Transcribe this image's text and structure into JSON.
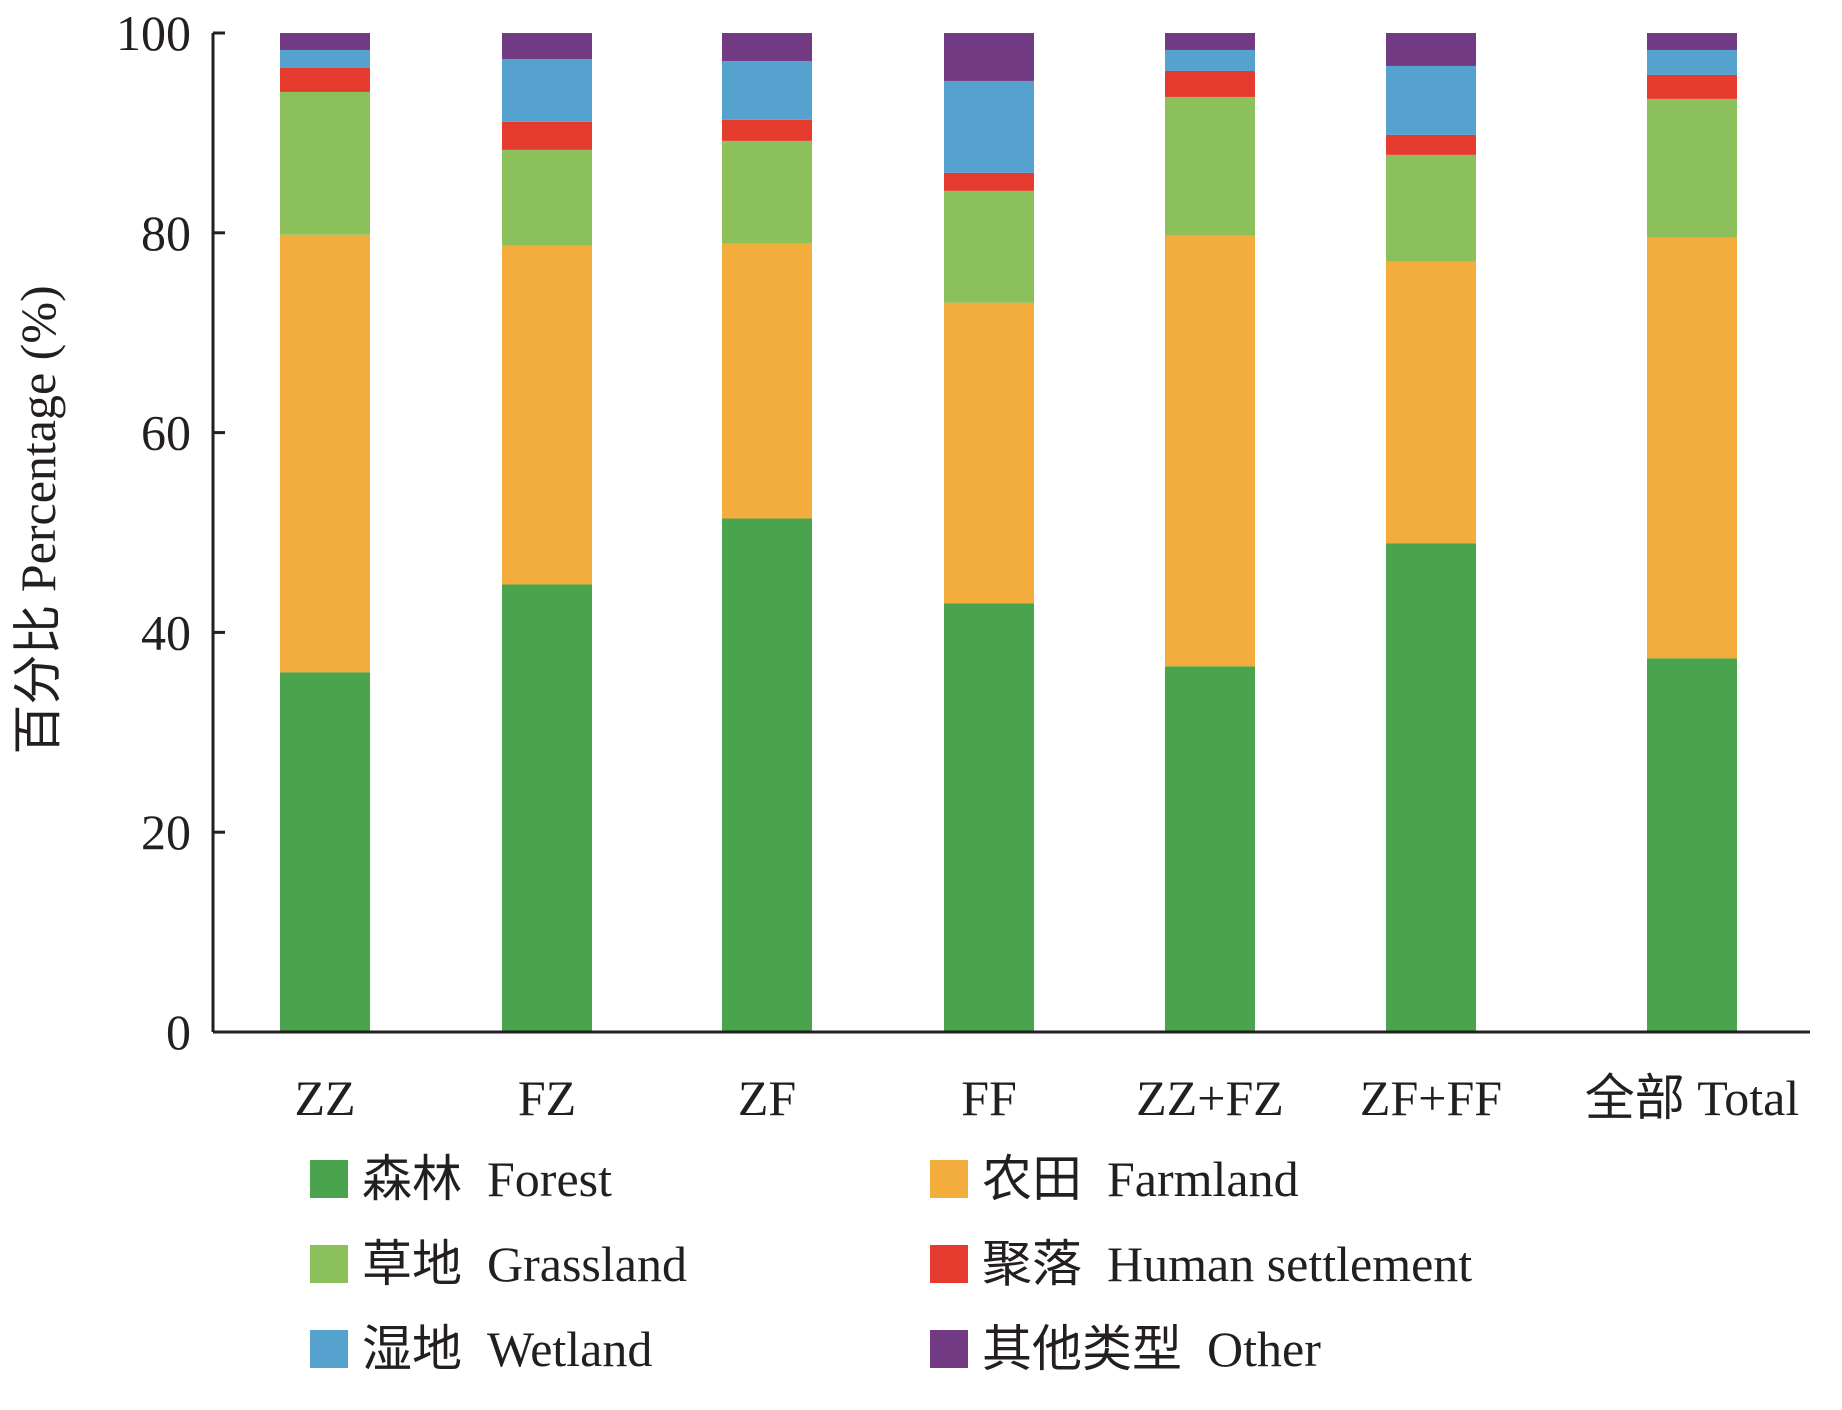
{
  "chart_data": {
    "type": "bar",
    "stacked": true,
    "title": "",
    "xlabel": "",
    "ylabel": "百分比  Percentage (%)",
    "ylim": [
      0,
      100
    ],
    "yticks": [
      0,
      20,
      40,
      60,
      80,
      100
    ],
    "grid": false,
    "legend_position": "bottom",
    "categories": [
      "ZZ",
      "FZ",
      "ZF",
      "FF",
      "ZZ+FZ",
      "ZF+FF",
      "全部 Total"
    ],
    "series": [
      {
        "name": "森林  Forest",
        "color": "#4aa34d",
        "values": [
          36.0,
          44.8,
          51.4,
          42.9,
          36.6,
          48.9,
          37.4
        ]
      },
      {
        "name": "农田  Farmland",
        "color": "#f2ad3d",
        "values": [
          43.8,
          33.9,
          27.5,
          30.1,
          43.1,
          28.2,
          42.1
        ]
      },
      {
        "name": "草地  Grassland",
        "color": "#8cc05a",
        "values": [
          14.3,
          9.6,
          10.3,
          11.2,
          13.9,
          10.7,
          13.9
        ]
      },
      {
        "name": "聚落  Human settlement",
        "color": "#e53b2f",
        "values": [
          2.4,
          2.8,
          2.1,
          1.8,
          2.6,
          2.0,
          2.4
        ]
      },
      {
        "name": "湿地  Wetland",
        "color": "#56a2cf",
        "values": [
          1.8,
          6.3,
          5.9,
          9.2,
          2.1,
          6.9,
          2.5
        ]
      },
      {
        "name": "其他类型  Other",
        "color": "#733a84",
        "values": [
          1.7,
          2.6,
          2.8,
          4.8,
          1.7,
          3.3,
          1.7
        ]
      }
    ]
  }
}
